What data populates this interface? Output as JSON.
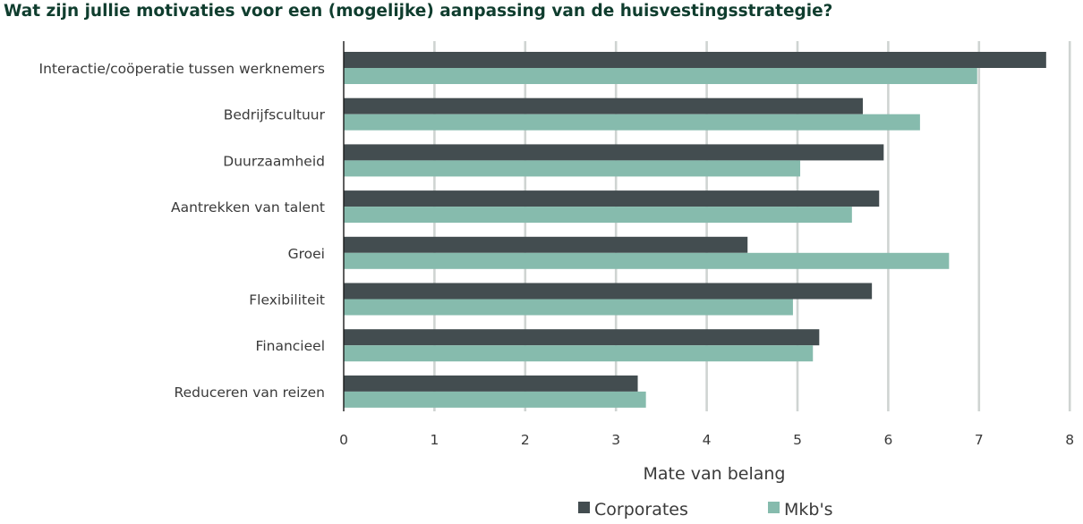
{
  "chart_data": {
    "type": "bar",
    "orientation": "horizontal",
    "title": "Wat zijn jullie motivaties voor een (mogelijke) aanpassing van de huisvestingsstrategie?",
    "categories": [
      "Interactie/coöperatie tussen werknemers",
      "Bedrijfscultuur",
      "Duurzaamheid",
      "Aantrekken van talent",
      "Groei",
      "Flexibiliteit",
      "Financieel",
      "Reduceren van reizen"
    ],
    "series": [
      {
        "name": "Corporates",
        "color": "#434d50",
        "values": [
          7.74,
          5.72,
          5.95,
          5.9,
          4.45,
          5.82,
          5.24,
          3.24
        ]
      },
      {
        "name": "Mkb's",
        "color": "#86bbad",
        "values": [
          6.98,
          6.35,
          5.03,
          5.6,
          6.67,
          4.95,
          5.17,
          3.33
        ]
      }
    ],
    "xlabel": "Mate van belang",
    "ylabel": "",
    "xlim": [
      0,
      8
    ],
    "xticks": [
      "0",
      "1",
      "2",
      "3",
      "4",
      "5",
      "6",
      "7",
      "8"
    ],
    "grid": "vertical",
    "legend": "bottom"
  }
}
